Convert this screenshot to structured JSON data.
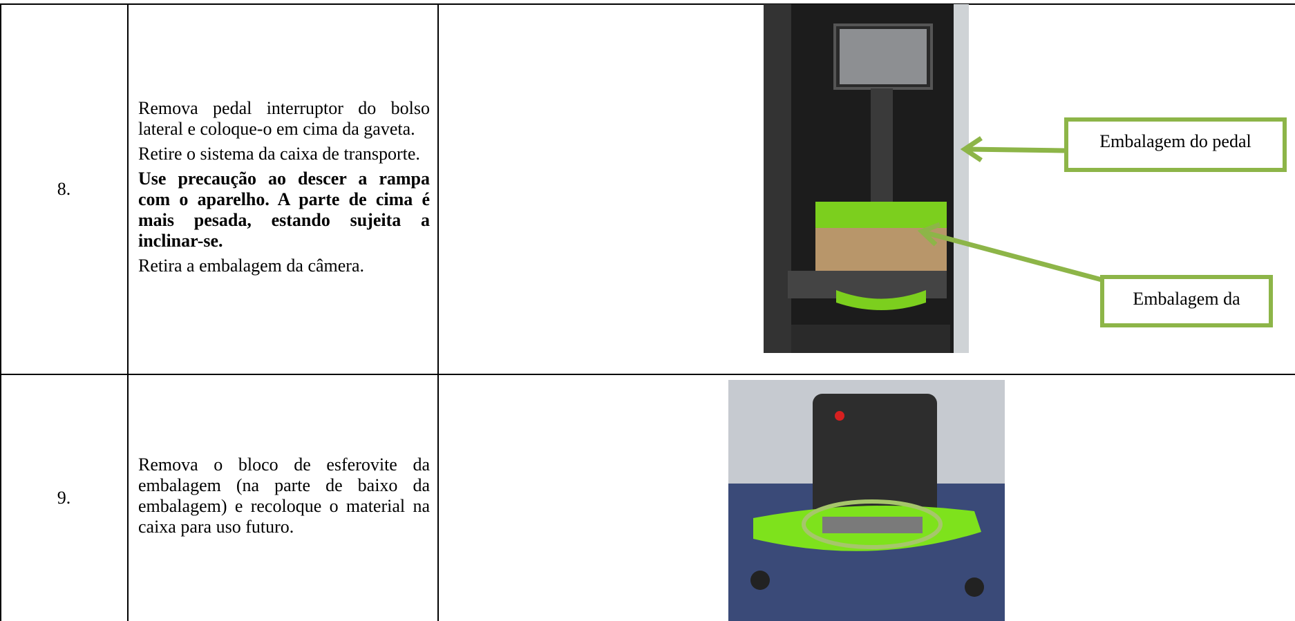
{
  "table": {
    "rows": [
      {
        "number": "8.",
        "paragraphs": [
          {
            "text": "Remova pedal interruptor do bolso lateral e coloque-o em cima da gaveta.",
            "bold": false
          },
          {
            "text": "Retire o sistema da caixa de transporte.",
            "bold": false
          },
          {
            "text": "Use precaução ao descer a rampa com o aparelho. A parte de cima é mais pesada, estando sujeita a inclinar-se.",
            "bold": true
          },
          {
            "text": "Retira a embalagem da câmera.",
            "bold": false
          }
        ],
        "callouts": [
          "Embalagem do pedal",
          "Embalagem da"
        ]
      },
      {
        "number": "9.",
        "paragraphs": [
          {
            "text": "Remova o bloco de esferovite da embalagem (na parte de baixo da embalagem) e recoloque o material na caixa para uso futuro.",
            "bold": false
          }
        ]
      }
    ]
  }
}
